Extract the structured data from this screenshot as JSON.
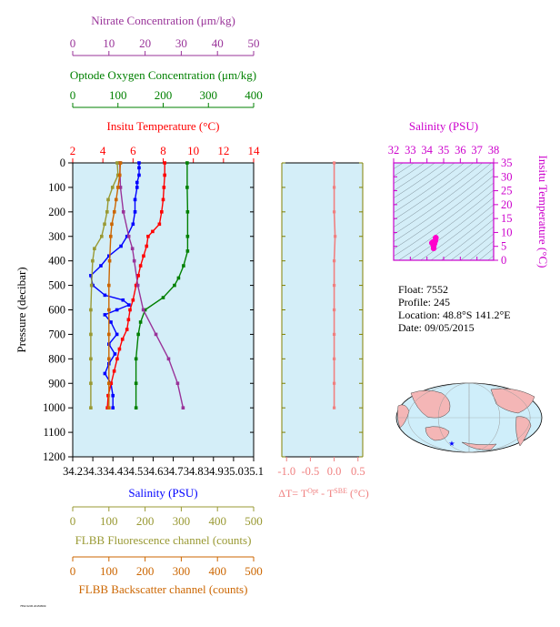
{
  "chart_data": [
    {
      "type": "line",
      "panel": "main profile",
      "ylabel": "Pressure (decibar)",
      "ylim": [
        1200,
        0
      ],
      "yticks": [
        0,
        100,
        200,
        300,
        400,
        500,
        600,
        700,
        800,
        900,
        1000,
        1100,
        1200
      ],
      "axes": {
        "salinity": {
          "label": "Salinity (PSU)",
          "range": [
            34.2,
            35.1
          ],
          "ticks": [
            "34.2",
            "34.3",
            "34.4",
            "34.5",
            "34.6",
            "34.7",
            "34.8",
            "34.9",
            "35.0",
            "35.1"
          ],
          "color": "#0000ff"
        },
        "temperature": {
          "label": "Insitu Temperature (°C)",
          "range": [
            2,
            14
          ],
          "ticks": [
            "2",
            "4",
            "6",
            "8",
            "10",
            "12",
            "14"
          ],
          "color": "#ff0000"
        },
        "oxygen": {
          "label": "Optode Oxygen Concentration (μm/kg)",
          "range": [
            0,
            400
          ],
          "ticks": [
            "0",
            "100",
            "200",
            "300",
            "400"
          ],
          "color": "#008000"
        },
        "nitrate": {
          "label": "Nitrate Concentration (μm/kg)",
          "range": [
            0,
            50
          ],
          "ticks": [
            "0",
            "10",
            "20",
            "30",
            "40",
            "50"
          ],
          "color": "#993399"
        },
        "fluorescence": {
          "label": "FLBB Fluorescence channel (counts)",
          "range": [
            0,
            500
          ],
          "ticks": [
            "0",
            "100",
            "200",
            "300",
            "400",
            "500"
          ],
          "color": "#999933"
        },
        "backscatter": {
          "label": "FLBB Backscatter channel (counts)",
          "range": [
            0,
            500
          ],
          "ticks": [
            "0",
            "100",
            "200",
            "300",
            "400",
            "500"
          ],
          "color": "#cc6600"
        }
      },
      "series": [
        {
          "axis": "salinity",
          "color": "#0000ff",
          "pressure": [
            0,
            20,
            50,
            80,
            100,
            150,
            200,
            250,
            300,
            340,
            380,
            420,
            460,
            500,
            540,
            560,
            580,
            600,
            620,
            650,
            700,
            740,
            780,
            820,
            860,
            900,
            950,
            1000
          ],
          "values": [
            34.53,
            34.53,
            34.53,
            34.52,
            34.52,
            34.51,
            34.51,
            34.5,
            34.47,
            34.44,
            34.38,
            34.34,
            34.29,
            34.3,
            34.36,
            34.45,
            34.48,
            34.42,
            34.36,
            34.39,
            34.42,
            34.38,
            34.41,
            34.38,
            34.36,
            34.39,
            34.4,
            34.4
          ]
        },
        {
          "axis": "temperature",
          "color": "#ff0000",
          "pressure": [
            0,
            50,
            100,
            150,
            200,
            250,
            280,
            300,
            340,
            380,
            420,
            460,
            500,
            560,
            600,
            640,
            680,
            720,
            760,
            800,
            850,
            900,
            950,
            1000
          ],
          "values": [
            8.1,
            8.1,
            8.05,
            8.0,
            7.9,
            7.75,
            7.3,
            7.0,
            6.9,
            6.7,
            6.5,
            6.35,
            6.2,
            6.0,
            5.8,
            5.7,
            5.6,
            5.3,
            5.1,
            4.95,
            4.75,
            4.55,
            4.35,
            4.3
          ]
        },
        {
          "axis": "oxygen",
          "color": "#008000",
          "pressure": [
            0,
            100,
            200,
            300,
            360,
            420,
            470,
            500,
            550,
            600,
            650,
            700,
            800,
            900,
            1000
          ],
          "values": [
            253,
            253,
            254,
            254,
            254,
            245,
            234,
            225,
            200,
            160,
            150,
            145,
            140,
            140,
            140
          ]
        },
        {
          "axis": "nitrate",
          "color": "#993399",
          "pressure": [
            0,
            100,
            200,
            300,
            350,
            400,
            500,
            600,
            700,
            800,
            900,
            1000
          ],
          "values": [
            13,
            13.2,
            14,
            15.5,
            16.5,
            17,
            18,
            19.5,
            23,
            26.5,
            29,
            30.5
          ]
        },
        {
          "axis": "fluorescence",
          "color": "#999933",
          "pressure": [
            0,
            50,
            100,
            150,
            200,
            250,
            300,
            350,
            400,
            500,
            600,
            700,
            800,
            900,
            1000
          ],
          "values": [
            123,
            125,
            110,
            98,
            95,
            88,
            80,
            60,
            55,
            52,
            50,
            50,
            50,
            50,
            50
          ]
        },
        {
          "axis": "backscatter",
          "color": "#cc6600",
          "pressure": [
            0,
            50,
            100,
            150,
            200,
            250,
            300,
            400,
            500,
            600,
            700,
            800,
            900,
            1000
          ],
          "values": [
            132,
            130,
            125,
            120,
            115,
            108,
            105,
            102,
            100,
            100,
            100,
            100,
            100,
            100
          ]
        }
      ]
    },
    {
      "type": "line",
      "panel": "delta T",
      "xlabel": "ΔT= T^Opt - T^SBE (°C)",
      "xlim": [
        -1.1,
        0.6
      ],
      "xticks": [
        "-1.0",
        "-0.5",
        "0.0",
        "0.5"
      ],
      "color": "#f08080",
      "pressure": [
        0,
        100,
        200,
        300,
        400,
        500,
        600,
        700,
        800,
        900,
        1000
      ],
      "values": [
        0.0,
        0.0,
        0.0,
        0.02,
        0.0,
        0.0,
        0.0,
        0.0,
        0.0,
        0.0,
        0.0
      ]
    },
    {
      "type": "scatter",
      "panel": "T-S diagram",
      "xlabel": "Salinity (PSU)",
      "ylabel": "Insitu Temperature (°C)",
      "xlim": [
        32,
        38
      ],
      "ylim": [
        0,
        35
      ],
      "xticks": [
        "32",
        "33",
        "34",
        "35",
        "36",
        "37",
        "38"
      ],
      "yticks": [
        "0",
        "5",
        "10",
        "15",
        "20",
        "25",
        "30",
        "35"
      ],
      "color": "#ff00cc",
      "points": [
        [
          34.4,
          4.3
        ],
        [
          34.4,
          5.0
        ],
        [
          34.45,
          6.0
        ],
        [
          34.5,
          7.0
        ],
        [
          34.52,
          8.0
        ],
        [
          34.53,
          8.1
        ],
        [
          34.35,
          6.5
        ],
        [
          34.3,
          6.2
        ]
      ]
    }
  ],
  "info": {
    "float": "Float:  7552",
    "profile": "Profile:  245",
    "location": "Location:  48.8°S  141.2°E",
    "date": "Date:  09/05/2015"
  },
  "footer_code": "7552 0245 20150509"
}
